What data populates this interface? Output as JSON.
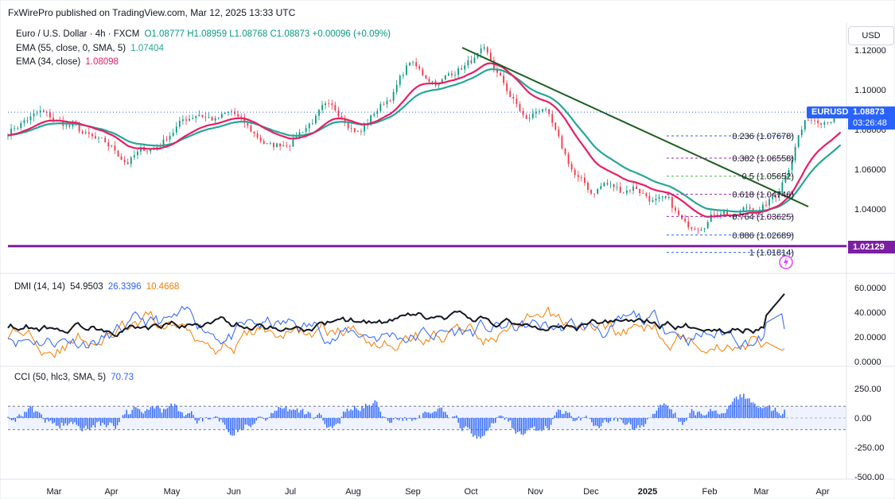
{
  "header": {
    "publisher": "FxWirePro published on TradingView.com, Mar 12, 2025 13:33 UTC"
  },
  "legend": {
    "symbol": "Euro / U.S. Dollar · 4h · FXCM",
    "ohlc": "O1.08777 H1.08959 L1.08768 C1.08873 +0.00096 (+0.09%)",
    "ema55_label": "EMA (55, close, 0, SMA, 5)",
    "ema55_value": "1.07404",
    "ema34_label": "EMA (34, close)",
    "ema34_value": "1.08098"
  },
  "currency_button": "USD",
  "price_axis": [
    "1.12000",
    "1.10000",
    "1.08000",
    "1.06000",
    "1.04000"
  ],
  "price_tags": {
    "symbol": "EURUSD",
    "price": "1.08873",
    "countdown": "03:26:48",
    "support": "1.02129"
  },
  "fib_levels": [
    {
      "label": "0.236 (1.07678)",
      "price": 1.07678,
      "color": "#2962ff"
    },
    {
      "label": "0.382 (1.06558)",
      "price": 1.06558,
      "color": "#9c27b0"
    },
    {
      "label": "0.5 (1.05652)",
      "price": 1.05652,
      "color": "#4caf50"
    },
    {
      "label": "0.618 (1.04746)",
      "price": 1.04746,
      "color": "#9c27b0"
    },
    {
      "label": "0.764 (1.03625)",
      "price": 1.03625,
      "color": "#9c27b0"
    },
    {
      "label": "0.886 (1.02689)",
      "price": 1.02689,
      "color": "#2962ff"
    },
    {
      "label": "1 (1.01814)",
      "price": 1.01814,
      "color": "#2962ff"
    }
  ],
  "dmi": {
    "label": "DMI (14, 14)",
    "adx": "54.9503",
    "plus_di": "26.3396",
    "minus_di": "10.4668",
    "axis": [
      "60.0000",
      "40.0000",
      "20.0000",
      "0.0000"
    ]
  },
  "cci": {
    "label": "CCI (50, hlc3, SMA, 5)",
    "value": "70.73",
    "axis": [
      "250.00",
      "0.00",
      "-250.00",
      "-500.00"
    ]
  },
  "time_axis": [
    "Mar",
    "Apr",
    "May",
    "Jun",
    "Jul",
    "Aug",
    "Sep",
    "Oct",
    "Nov",
    "Dec",
    "2025",
    "Feb",
    "Mar",
    "Apr"
  ],
  "colors": {
    "candle_up": "#089981",
    "candle_down": "#f23645",
    "ema55": "#26a69a",
    "ema34": "#e91e63",
    "trendline": "#1b5e20",
    "support": "#7b1fa2",
    "adx": "#131722",
    "plus_di": "#2962ff",
    "minus_di": "#f57c00",
    "cci": "#2962ff",
    "tag_blue": "#2962ff",
    "tag_purple": "#7b1fa2"
  },
  "chart_data": {
    "type": "line",
    "title": "Euro / U.S. Dollar · 4h · FXCM",
    "ylim": [
      1.014,
      1.124
    ],
    "x": [
      "Feb",
      "Mar",
      "Apr",
      "May",
      "Jun",
      "Jul",
      "Aug",
      "Sep",
      "Oct",
      "Nov",
      "Dec",
      "2025",
      "Feb",
      "Mar"
    ],
    "series": [
      {
        "name": "Euro / U.S. Dollar · 4h · FXCM",
        "values": [
          1.079,
          1.088,
          1.074,
          1.071,
          1.089,
          1.075,
          1.086,
          1.113,
          1.112,
          1.084,
          1.052,
          1.034,
          1.036,
          1.0887
        ]
      },
      {
        "name": "EMA (55, close, 0, SMA, 5)",
        "values": [
          1.078,
          1.086,
          1.077,
          1.073,
          1.085,
          1.078,
          1.083,
          1.108,
          1.112,
          1.089,
          1.058,
          1.039,
          1.036,
          1.07404
        ]
      },
      {
        "name": "EMA (34, close)",
        "values": [
          1.078,
          1.087,
          1.076,
          1.072,
          1.087,
          1.077,
          1.084,
          1.11,
          1.113,
          1.087,
          1.055,
          1.037,
          1.035,
          1.08098
        ]
      }
    ]
  }
}
